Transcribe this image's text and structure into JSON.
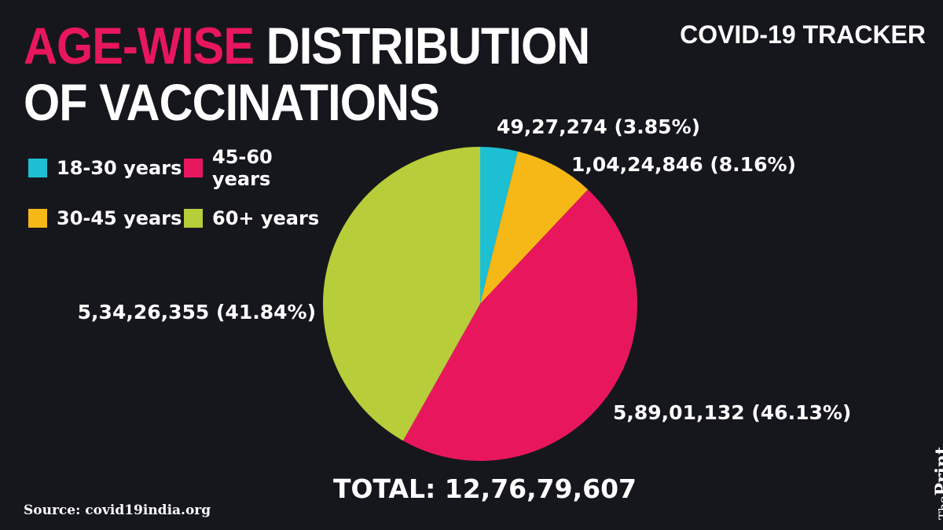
{
  "header": {
    "title_highlight": "AGE-WISE",
    "title_rest_line1": " DISTRIBUTION",
    "title_line2": "OF VACCINATIONS",
    "tracker": "COVID-19 TRACKER"
  },
  "colors": {
    "background": "#16171d",
    "highlight": "#e8175d"
  },
  "legend": [
    {
      "label": "18-30 years",
      "color": "#1dbfd3"
    },
    {
      "label": "45-60 years",
      "color": "#e8175d"
    },
    {
      "label": "30-45 years",
      "color": "#f5b817"
    },
    {
      "label": "60+ years",
      "color": "#b7cd3a"
    }
  ],
  "chart_data": {
    "type": "pie",
    "title": "AGE-WISE DISTRIBUTION OF VACCINATIONS",
    "slices": [
      {
        "category": "18-30 years",
        "value": 4927274,
        "percent": 3.85,
        "label": "49,27,274 (3.85%)",
        "color": "#1dbfd3"
      },
      {
        "category": "30-45 years",
        "value": 10424846,
        "percent": 8.16,
        "label": "1,04,24,846 (8.16%)",
        "color": "#f5b817"
      },
      {
        "category": "45-60 years",
        "value": 58901132,
        "percent": 46.13,
        "label": "5,89,01,132 (46.13%)",
        "color": "#e8175d"
      },
      {
        "category": "60+ years",
        "value": 53426355,
        "percent": 41.84,
        "label": "5,34,26,355 (41.84%)",
        "color": "#b7cd3a"
      }
    ],
    "total_label": "TOTAL: 12,76,79,607"
  },
  "footer": {
    "source": "Source: covid19india.org",
    "brand_small": "The",
    "brand_main": "Print"
  }
}
